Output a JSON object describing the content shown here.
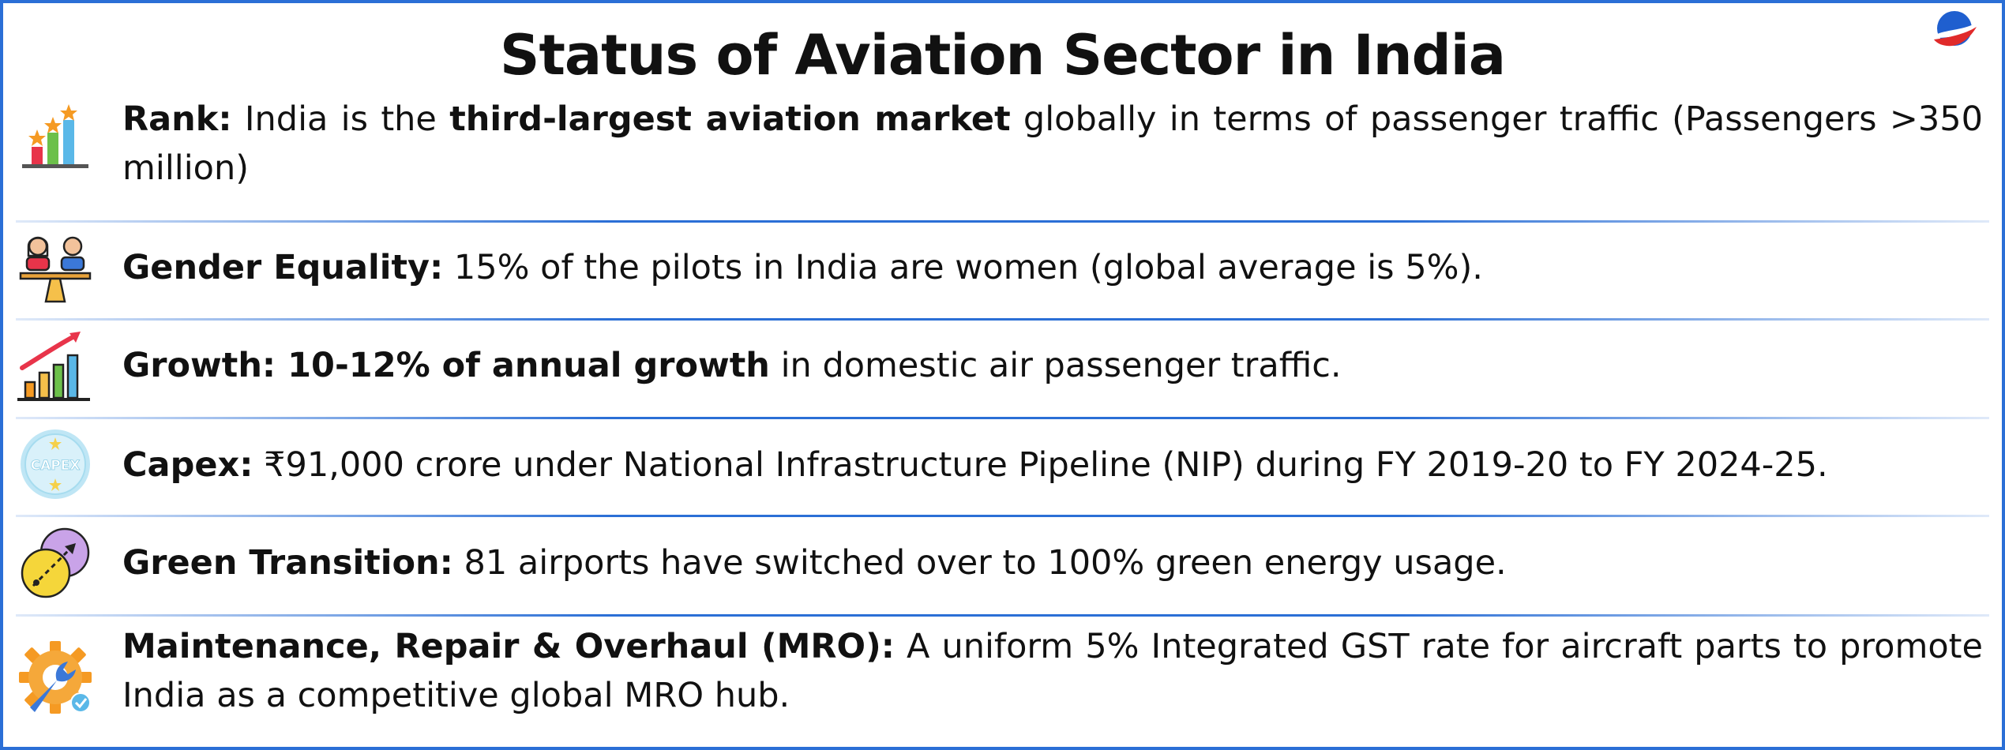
{
  "title": "Status of Aviation Sector in India",
  "rows": [
    {
      "icon": "bar-chart-stars-icon",
      "label": "Rank:",
      "text_1": " India is the ",
      "bold": "third-largest aviation market",
      "text_2": " globally in terms of passenger traffic (Passengers >350 million)"
    },
    {
      "icon": "gender-balance-icon",
      "label": "Gender Equality:",
      "text_1": " 15% of the pilots in India are women (global average is 5%)."
    },
    {
      "icon": "growth-chart-icon",
      "label": "Growth: 10-12% of annual growth",
      "text_1": " in domestic air passenger traffic."
    },
    {
      "icon": "capex-badge-icon",
      "icon_text": "CAPEX",
      "label": "Capex:",
      "text_1": " ₹91,000 crore  under National Infrastructure Pipeline (NIP) during FY 2019-20 to FY 2024-25."
    },
    {
      "icon": "green-transition-icon",
      "label": "Green Transition:",
      "text_1": " 81 airports have switched over to 100% green energy usage."
    },
    {
      "icon": "maintenance-gear-wrench-icon",
      "label": "Maintenance, Repair & Overhaul (MRO):",
      "text_1": " A uniform 5% Integrated GST rate for aircraft parts to promote India as a competitive global MRO hub."
    }
  ],
  "colors": {
    "border": "#2b6fd6",
    "logo_blue": "#1f5fcf",
    "logo_red": "#e02a2a"
  }
}
